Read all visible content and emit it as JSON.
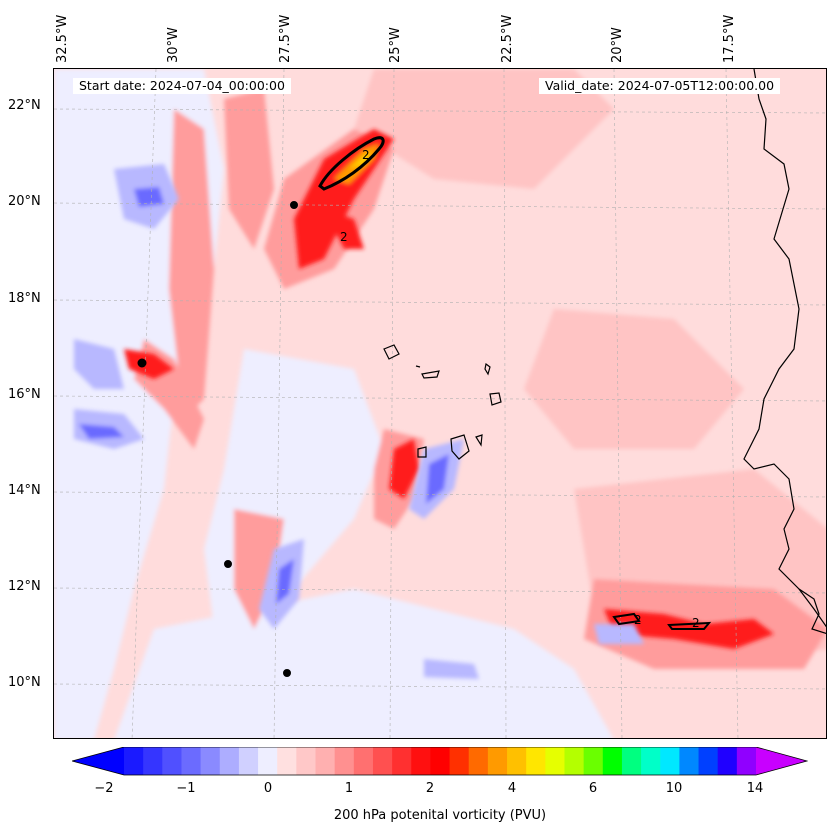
{
  "map": {
    "start_date": "Start date: 2024-07-04_00:00:00",
    "valid_date": "Valid_date: 2024-07-05T12:00:00.00",
    "lon_labels": [
      "32.5°W",
      "30°W",
      "27.5°W",
      "25°W",
      "22.5°W",
      "20°W",
      "17.5°W"
    ],
    "lat_labels": [
      "22°N",
      "20°N",
      "18°N",
      "16°N",
      "14°N",
      "12°N",
      "10°N"
    ],
    "contour_label": "2",
    "field_colors": {
      "background": "#ffdcdc",
      "light_pink": "#ffc4c4",
      "pink": "#ff9c9c",
      "red": "#ff5050",
      "deep_red": "#ff1a1a",
      "pale_blue": "#eeeeff",
      "light_blue": "#b8b8ff",
      "blue": "#6a6aff",
      "orange": "#ff9a00",
      "yellow": "#ffd200"
    }
  },
  "colorbar": {
    "label": "200 hPa potenital vorticity (PVU)",
    "ticks": [
      "−2",
      "−1",
      "0",
      "1",
      "2",
      "4",
      "6",
      "10",
      "14"
    ],
    "colors": [
      "#0000ff",
      "#1a1aff",
      "#3535ff",
      "#5050ff",
      "#6b6bff",
      "#8a8aff",
      "#adadff",
      "#d0d0ff",
      "#eeeeff",
      "#ffe0e0",
      "#ffc8c8",
      "#ffb0b0",
      "#ff9090",
      "#ff7070",
      "#ff5050",
      "#ff3030",
      "#ff1010",
      "#ff0000",
      "#ff3000",
      "#ff6a00",
      "#ff9a00",
      "#ffc000",
      "#ffe600",
      "#e6ff00",
      "#b4ff00",
      "#6aff00",
      "#00ff00",
      "#00ff80",
      "#00ffc8",
      "#00e8ff",
      "#0088ff",
      "#0040ff",
      "#2000ff",
      "#9000ff",
      "#c800ff"
    ]
  }
}
